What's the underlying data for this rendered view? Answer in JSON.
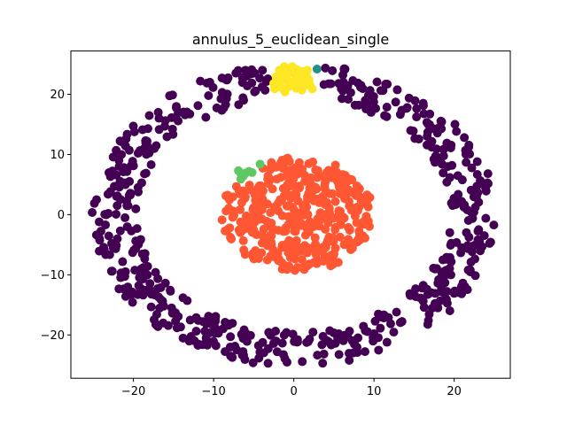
{
  "chart_data": {
    "type": "scatter",
    "title": "annulus_5_euclidean_single",
    "xlabel": "",
    "ylabel": "",
    "xlim": [
      -27.8,
      27.0
    ],
    "ylim": [
      -27.2,
      27.2
    ],
    "x_ticks": [
      -20,
      -10,
      0,
      10,
      20
    ],
    "y_ticks": [
      -20,
      -10,
      0,
      10,
      20
    ],
    "x_tick_labels": [
      "−20",
      "−10",
      "0",
      "10",
      "20"
    ],
    "y_tick_labels": [
      "−20",
      "−10",
      "0",
      "10",
      "20"
    ],
    "grid": false,
    "legend": "none",
    "series": [
      {
        "cluster": 0,
        "color": "#440154",
        "shape": "ring",
        "center": [
          0,
          0
        ],
        "radius_range": [
          19.5,
          25.2
        ],
        "point_count": 620
      },
      {
        "cluster": 1,
        "color": "#ff5733",
        "shape": "disk",
        "center": [
          0.5,
          0
        ],
        "radius_x": 9.5,
        "radius_y": 9.5,
        "point_count": 420
      },
      {
        "cluster": 2,
        "color": "#fde725",
        "shape": "points",
        "points": [
          [
            -1.8,
            24.0
          ],
          [
            -1.0,
            24.4
          ],
          [
            -0.3,
            24.3
          ],
          [
            0.4,
            24.1
          ],
          [
            1.1,
            23.8
          ],
          [
            -2.2,
            22.9
          ],
          [
            -1.4,
            23.2
          ],
          [
            -0.6,
            23.5
          ],
          [
            0.2,
            23.3
          ],
          [
            0.9,
            22.9
          ],
          [
            1.6,
            23.0
          ],
          [
            -2.5,
            21.8
          ],
          [
            -1.7,
            22.1
          ],
          [
            -0.9,
            22.4
          ],
          [
            0.0,
            22.2
          ],
          [
            0.7,
            21.9
          ],
          [
            1.4,
            22.0
          ],
          [
            2.0,
            21.6
          ],
          [
            -2.4,
            20.9
          ],
          [
            -1.5,
            21.1
          ],
          [
            -0.6,
            21.3
          ],
          [
            0.3,
            21.0
          ],
          [
            1.0,
            20.7
          ],
          [
            -1.1,
            20.4
          ],
          [
            1.9,
            22.4
          ],
          [
            -0.2,
            24.6
          ],
          [
            0.6,
            22.6
          ],
          [
            -1.9,
            21.5
          ],
          [
            1.3,
            21.4
          ],
          [
            2.3,
            20.9
          ],
          [
            1.7,
            24.0
          ],
          [
            -1.2,
            24.6
          ]
        ]
      },
      {
        "cluster": 3,
        "color": "#21918c",
        "shape": "points",
        "points": [
          [
            2.9,
            24.2
          ]
        ]
      },
      {
        "cluster": 4,
        "color": "#5ec962",
        "shape": "points",
        "points": [
          [
            -6.6,
            6.8
          ],
          [
            -6.9,
            7.3
          ],
          [
            -6.3,
            6.4
          ],
          [
            -6.6,
            5.9
          ],
          [
            -5.6,
            7.2
          ],
          [
            -5.2,
            7.0
          ],
          [
            -4.2,
            8.4
          ],
          [
            -6.0,
            6.9
          ]
        ]
      }
    ]
  }
}
